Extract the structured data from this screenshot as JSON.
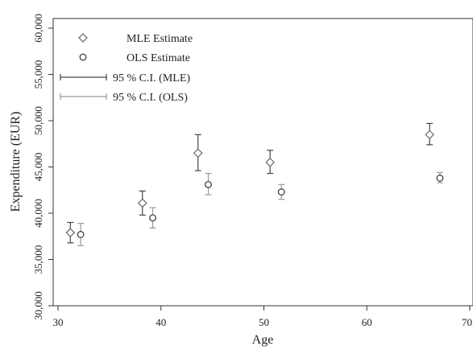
{
  "chart_data": {
    "type": "scatter",
    "xlabel": "Age",
    "ylabel": "Expenditure (EUR)",
    "xlim": [
      30,
      70
    ],
    "ylim": [
      30000,
      60000
    ],
    "x_ticks": [
      "30",
      "40",
      "50",
      "60",
      "70"
    ],
    "y_ticks": [
      "30,000",
      "35,000",
      "40,000",
      "45,000",
      "50,000",
      "55,000",
      "60,000"
    ],
    "grid": false,
    "legend_position": "top-left",
    "legend": [
      "MLE Estimate",
      "OLS Estimate",
      "95 % C.I. (MLE)",
      "95 % C.I. (OLS)"
    ],
    "series": [
      {
        "name": "MLE Estimate",
        "marker": "diamond",
        "color": "#666666",
        "ci_color": "#444444",
        "points": [
          {
            "x": 31.2,
            "y": 37900,
            "ci": [
              36800,
              39000
            ]
          },
          {
            "x": 38.2,
            "y": 41100,
            "ci": [
              39800,
              42400
            ]
          },
          {
            "x": 43.6,
            "y": 46500,
            "ci": [
              44600,
              48500
            ]
          },
          {
            "x": 50.6,
            "y": 45500,
            "ci": [
              44300,
              46800
            ]
          },
          {
            "x": 66.1,
            "y": 48500,
            "ci": [
              47400,
              49700
            ]
          }
        ]
      },
      {
        "name": "OLS Estimate",
        "marker": "circle",
        "color": "#333333",
        "ci_color": "#999999",
        "points": [
          {
            "x": 32.2,
            "y": 37700,
            "ci": [
              36500,
              38900
            ]
          },
          {
            "x": 39.2,
            "y": 39500,
            "ci": [
              38400,
              40600
            ]
          },
          {
            "x": 44.6,
            "y": 43100,
            "ci": [
              42000,
              44300
            ]
          },
          {
            "x": 51.7,
            "y": 42300,
            "ci": [
              41500,
              43100
            ]
          },
          {
            "x": 67.1,
            "y": 43800,
            "ci": [
              43300,
              44400
            ]
          }
        ]
      }
    ]
  }
}
